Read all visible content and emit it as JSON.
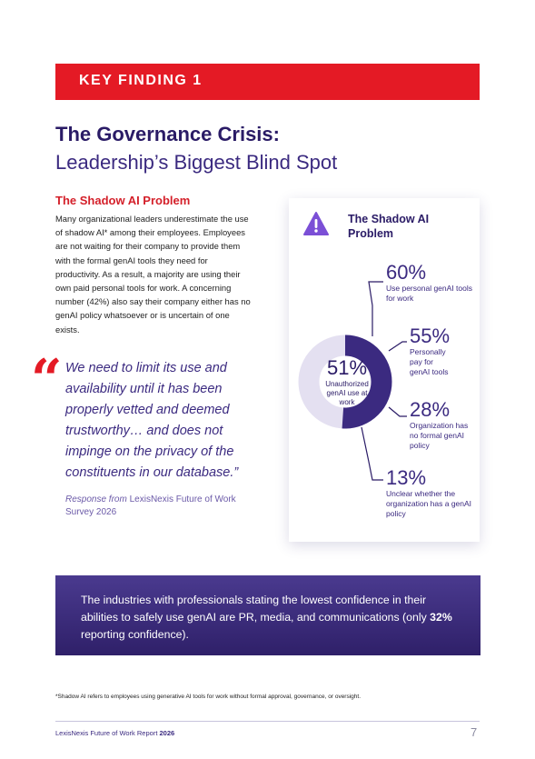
{
  "banner": {
    "label": "KEY FINDING 1"
  },
  "heading": {
    "line1": "The Governance Crisis:",
    "line2": "Leadership’s Biggest Blind Spot"
  },
  "section": {
    "title": "The Shadow AI Problem",
    "body": "Many organizational leaders underestimate the use of shadow AI* among their employees. Employees are not waiting for their company to provide them with the formal genAI tools they need for productivity. As a result, a majority are using their own paid personal tools for work. A concerning number (42%) also say their company either has no genAI policy whatsoever or is uncertain of one exists."
  },
  "quote": {
    "mark": "“",
    "text": "We need to limit its use and availability until it has been properly vetted and deemed trustworthy… and does not impinge on the privacy of the constituents in our database.”",
    "attr_prefix": "Response from",
    "attr_source": "LexisNexis Future of Work Survey 2026"
  },
  "card": {
    "title": "The Shadow AI Problem",
    "icon": "warning-triangle-icon",
    "center": {
      "value": "51%",
      "label": "Unauthorized genAI use at work",
      "fraction": 0.51
    },
    "stats": [
      {
        "value": "60%",
        "label": "Use personal genAI tools for work"
      },
      {
        "value": "55%",
        "label": "Personally pay for genAI tools"
      },
      {
        "value": "28%",
        "label": "Organization has no formal genAI policy"
      },
      {
        "value": "13%",
        "label": "Unclear whether the organization has a genAI policy"
      }
    ],
    "colors": {
      "primary": "#3b2a80",
      "light": "#e4e0f1",
      "warn": "#7b4fd6"
    }
  },
  "callout": {
    "text_before": "The industries with professionals stating the lowest confidence in their abilities to safely use genAI are PR, media, and communications (only ",
    "text_bold": "32%",
    "text_after": " reporting confidence)."
  },
  "footnote": "*Shadow AI refers to employees using generative AI tools for work without formal approval, governance, or oversight.",
  "footer": {
    "report": "LexisNexis Future of Work Report",
    "year": "2026",
    "page": "7"
  }
}
